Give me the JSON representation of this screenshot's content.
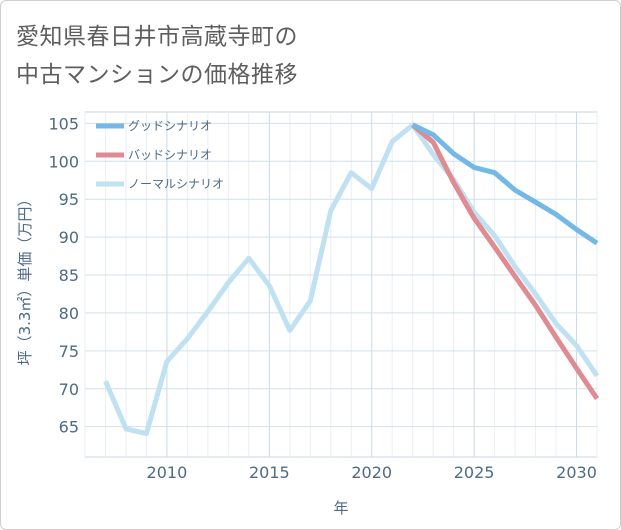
{
  "title": {
    "line1": "愛知県春日井市高蔵寺町の",
    "line2": "中古マンションの価格推移"
  },
  "chart_data": {
    "type": "line",
    "title": "愛知県春日井市高蔵寺町の中古マンションの価格推移",
    "xlabel": "年",
    "ylabel": "坪（3.3㎡）単価（万円）",
    "xlim": [
      2006,
      2031
    ],
    "ylim": [
      61,
      106.5
    ],
    "x_ticks": [
      2010,
      2015,
      2020,
      2025,
      2030
    ],
    "y_ticks": [
      65,
      70,
      75,
      80,
      85,
      90,
      95,
      100,
      105
    ],
    "grid": true,
    "legend_position": "top-left",
    "series": [
      {
        "name": "グッドシナリオ",
        "color": "#74b8e8",
        "x": [
          2022,
          2023,
          2024,
          2025,
          2026,
          2027,
          2028,
          2029,
          2030,
          2031
        ],
        "values": [
          104.8,
          103.5,
          101.0,
          99.2,
          98.5,
          96.2,
          94.6,
          93.0,
          91.0,
          89.2
        ]
      },
      {
        "name": "バッドシナリオ",
        "color": "#e08a91",
        "x": [
          2022,
          2023,
          2024,
          2025,
          2026,
          2027,
          2028,
          2029,
          2030,
          2031
        ],
        "values": [
          104.8,
          102.5,
          97.2,
          92.5,
          88.7,
          84.8,
          81.0,
          76.8,
          72.7,
          68.7
        ]
      },
      {
        "name": "ノーマルシナリオ",
        "color": "#bfe1f1",
        "x": [
          2007,
          2008,
          2009,
          2010,
          2011,
          2012,
          2013,
          2014,
          2015,
          2016,
          2017,
          2018,
          2019,
          2020,
          2021,
          2022,
          2023,
          2024,
          2025,
          2026,
          2027,
          2028,
          2029,
          2030,
          2031
        ],
        "values": [
          71.0,
          64.7,
          64.1,
          73.6,
          76.6,
          80.2,
          84.0,
          87.2,
          83.6,
          77.7,
          81.6,
          93.5,
          98.5,
          96.4,
          102.6,
          104.8,
          100.9,
          97.6,
          93.3,
          90.2,
          86.1,
          82.5,
          78.6,
          75.7,
          71.7
        ]
      }
    ]
  }
}
